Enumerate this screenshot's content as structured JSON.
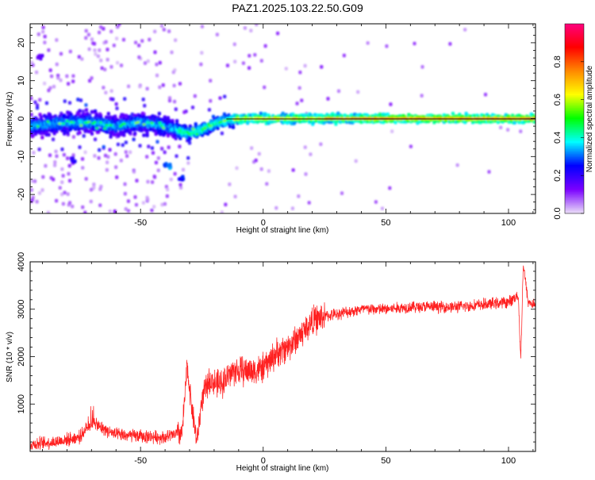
{
  "title": "PAZ1.2025.103.22.50.G09",
  "chart_data": [
    {
      "type": "heatmap",
      "xlabel": "Height of straight line (km)",
      "ylabel": "Frequency (Hz)",
      "xlim": [
        -95,
        111
      ],
      "ylim": [
        -25,
        25
      ],
      "xticks": [
        -50,
        0,
        50,
        100
      ],
      "yticks": [
        -20,
        -10,
        0,
        10,
        20
      ],
      "colorbar": {
        "label": "Normalized spectral amplitude",
        "range": [
          0.0,
          1.0
        ],
        "ticks": [
          0.0,
          0.2,
          0.4,
          0.6,
          0.8
        ],
        "colormap": [
          "#e9dcf7",
          "#7a00ff",
          "#0000ff",
          "#00ffff",
          "#00ff00",
          "#ffff00",
          "#ff8800",
          "#ff0000",
          "#ff0080"
        ]
      },
      "ridge": {
        "x": [
          -95,
          -80,
          -70,
          -60,
          -50,
          -40,
          -30,
          -25,
          -20,
          -15,
          -10,
          0,
          10,
          20,
          50,
          80,
          111
        ],
        "frequency": [
          -2,
          -1,
          -1,
          -2,
          -1,
          -2,
          -4,
          -3,
          -1.5,
          -0.5,
          0,
          0,
          0,
          0,
          0,
          0,
          0
        ]
      }
    },
    {
      "type": "line",
      "xlabel": "Height of straight line (km)",
      "ylabel": "SNR (10 * v/v)",
      "xlim": [
        -95,
        111
      ],
      "ylim": [
        0,
        4000
      ],
      "xticks": [
        -50,
        0,
        50,
        100
      ],
      "yticks": [
        1000,
        2000,
        3000,
        4000
      ],
      "color": "#ff2020",
      "series": [
        {
          "x": [
            -95,
            -85,
            -75,
            -70,
            -60,
            -50,
            -40,
            -33,
            -31,
            -29,
            -27,
            -25,
            -22,
            -18,
            -12,
            -5,
            0,
            5,
            10,
            15,
            20,
            25,
            30,
            40,
            50,
            60,
            70,
            80,
            90,
            100,
            104,
            105,
            106,
            108,
            111
          ],
          "values": [
            150,
            200,
            300,
            600,
            350,
            320,
            300,
            400,
            1800,
            900,
            200,
            1100,
            1500,
            1400,
            1700,
            1700,
            1750,
            2050,
            2200,
            2450,
            2750,
            2850,
            2900,
            3000,
            3000,
            3050,
            3050,
            3050,
            3100,
            3150,
            3300,
            1900,
            3950,
            3150,
            3100
          ]
        }
      ]
    }
  ]
}
